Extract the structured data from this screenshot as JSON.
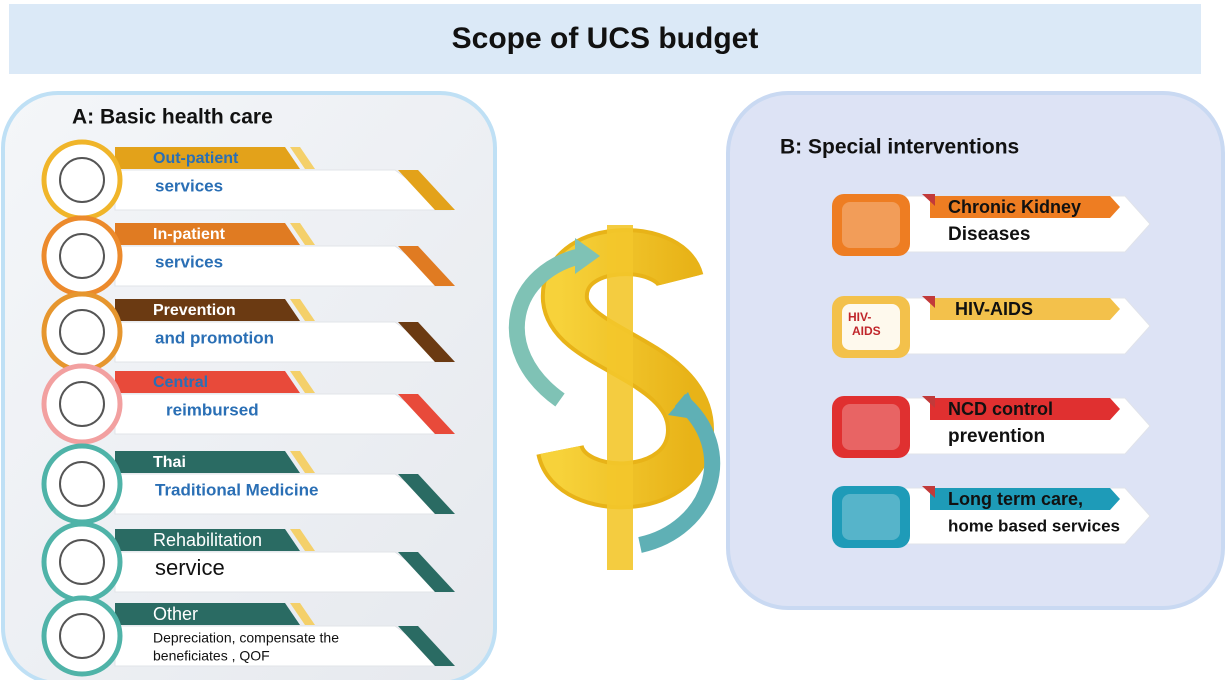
{
  "header": {
    "title": "Scope of UCS budget"
  },
  "basic": {
    "title": "A: Basic health care",
    "items": [
      {
        "tag": "Out-patient",
        "detail": "services"
      },
      {
        "tag": "In-patient",
        "detail": "services"
      },
      {
        "tag": "Prevention",
        "detail": "and promotion"
      },
      {
        "tag": "Central",
        "detail": "reimbursed"
      },
      {
        "tag": "Thai",
        "detail": "Traditional Medicine"
      },
      {
        "tag": "Rehabilitation",
        "detail": "service"
      },
      {
        "tag": "Other",
        "detail": [
          "Depreciation, compensate the",
          "beneficiates , QOF"
        ]
      }
    ]
  },
  "special": {
    "title": "B: Special interventions",
    "items": [
      {
        "tag": "Chronic Kidney",
        "detail": "Diseases"
      },
      {
        "tag": "HIV-AIDS",
        "icon_label": [
          "HIV-",
          "AIDS"
        ]
      },
      {
        "tag": "NCD control",
        "detail": "prevention"
      },
      {
        "tag": "Long term care,",
        "detail": "home based services"
      }
    ]
  }
}
